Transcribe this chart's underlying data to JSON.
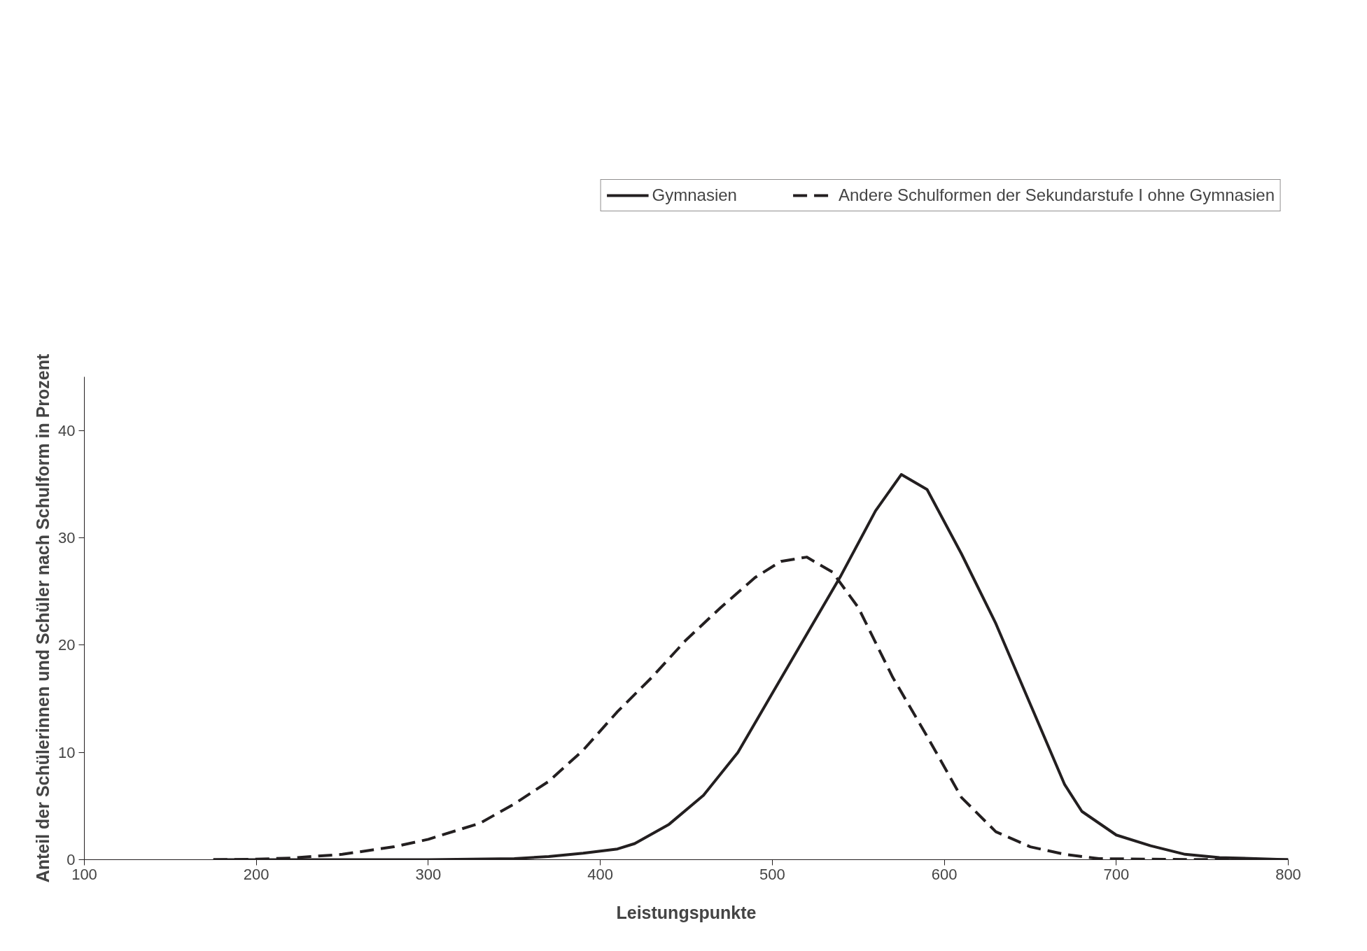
{
  "chart_data": {
    "type": "line",
    "xlabel": "Leistungspunkte",
    "ylabel": "Anteil der Schülerinnen und Schüler nach Schulform in Prozent",
    "xlim": [
      100,
      800
    ],
    "xticks": [
      100,
      200,
      300,
      400,
      500,
      600,
      700,
      800
    ],
    "ylim": [
      0,
      45
    ],
    "yticks": [
      0,
      10,
      20,
      30,
      40
    ],
    "grid": false,
    "legend": "top",
    "marker": "none",
    "series": [
      {
        "name": "Gymnasien",
        "color": "#231f20",
        "line_style": "solid",
        "x": [
          175,
          300,
          350,
          370,
          390,
          410,
          420,
          440,
          460,
          480,
          500,
          520,
          540,
          560,
          575,
          590,
          610,
          630,
          650,
          670,
          680,
          700,
          720,
          740,
          760,
          800
        ],
        "values": [
          0,
          0,
          0.1,
          0.3,
          0.6,
          1.0,
          1.5,
          3.3,
          6.0,
          10.0,
          15.5,
          21.0,
          26.5,
          32.5,
          35.9,
          34.5,
          28.5,
          22.0,
          14.5,
          7.0,
          4.5,
          2.3,
          1.3,
          0.5,
          0.2,
          0
        ]
      },
      {
        "name": "Andere Schulformen der Sekundarstufe I ohne Gymnasien",
        "color": "#231f20",
        "line_style": "dashed",
        "x": [
          175,
          200,
          220,
          250,
          280,
          300,
          330,
          350,
          370,
          390,
          410,
          430,
          450,
          470,
          490,
          505,
          520,
          535,
          550,
          570,
          590,
          610,
          630,
          650,
          670,
          690,
          720,
          760,
          800
        ],
        "values": [
          0,
          0.05,
          0.15,
          0.5,
          1.2,
          1.9,
          3.4,
          5.2,
          7.3,
          10.2,
          13.8,
          17.0,
          20.5,
          23.5,
          26.3,
          27.8,
          28.2,
          26.8,
          23.5,
          17.0,
          11.5,
          5.8,
          2.6,
          1.2,
          0.5,
          0.1,
          0.05,
          0,
          0
        ]
      }
    ]
  }
}
